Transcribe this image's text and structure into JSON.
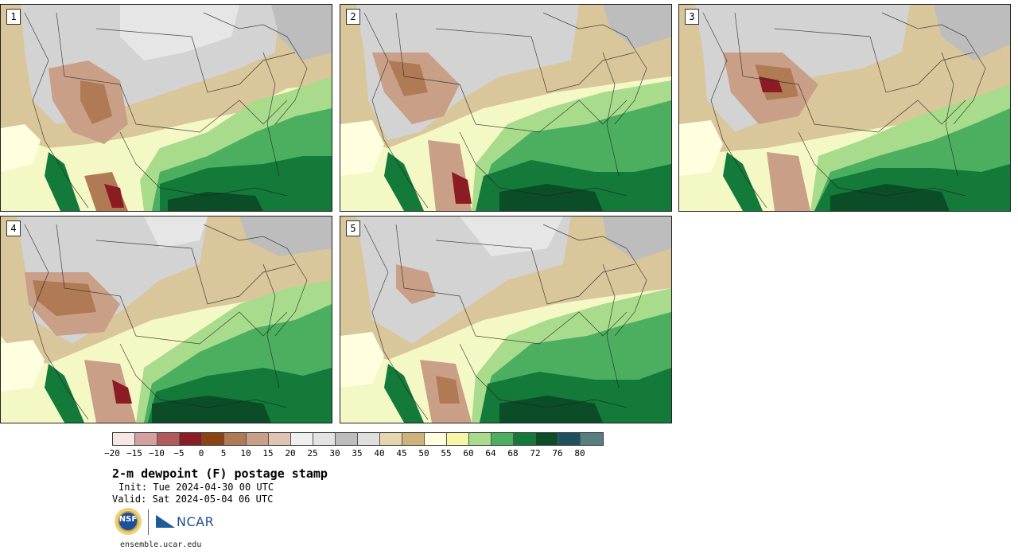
{
  "panels": [
    {
      "label": "1"
    },
    {
      "label": "2"
    },
    {
      "label": "3"
    },
    {
      "label": "4"
    },
    {
      "label": "5"
    }
  ],
  "colorbar": {
    "colors": [
      "#f6e6e6",
      "#d4a1a1",
      "#b35a5a",
      "#8c1c24",
      "#8b4513",
      "#b07a55",
      "#c9a087",
      "#e0c3b0",
      "#efefef",
      "#e3e3e3",
      "#bdbdbd",
      "#dedede",
      "#e6d6ae",
      "#cfb27a",
      "#ffffe0",
      "#f6f6a6",
      "#a8dc8c",
      "#4caf60",
      "#137a3a",
      "#0b4d26",
      "#1f5060",
      "#568080"
    ],
    "tick_labels": [
      "−20",
      "−15",
      "−10",
      "−5",
      "0",
      "5",
      "10",
      "15",
      "20",
      "25",
      "30",
      "35",
      "40",
      "45",
      "50",
      "55",
      "60",
      "64",
      "68",
      "72",
      "76",
      "80"
    ]
  },
  "title": "2-m dewpoint (F) postage stamp",
  "init_text": "Init: Tue 2024-04-30 00 UTC",
  "valid_text": "Valid: Sat 2024-05-04 06 UTC",
  "logos": {
    "nsf_text": "NSF",
    "ncar_text": "NCAR"
  },
  "footer": "ensemble.ucar.edu"
}
